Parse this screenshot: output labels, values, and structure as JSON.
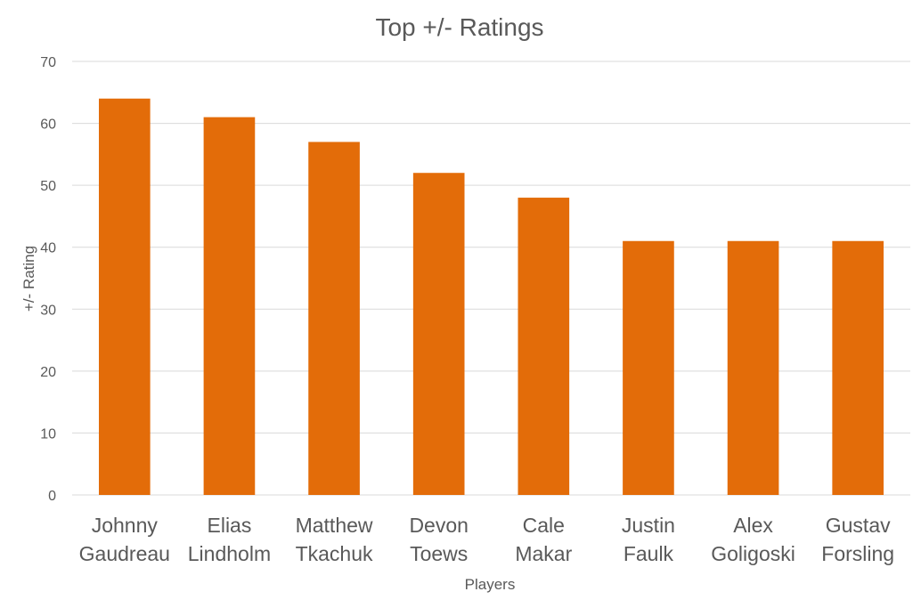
{
  "chart_data": {
    "type": "bar",
    "title": "Top +/- Ratings",
    "xlabel": "Players",
    "ylabel": "+/- Rating",
    "categories": [
      [
        "Johnny",
        "Gaudreau"
      ],
      [
        "Elias",
        "Lindholm"
      ],
      [
        "Matthew",
        "Tkachuk"
      ],
      [
        "Devon",
        "Toews"
      ],
      [
        "Cale",
        "Makar"
      ],
      [
        "Justin",
        "Faulk"
      ],
      [
        "Alex",
        "Goligoski"
      ],
      [
        "Gustav",
        "Forsling"
      ]
    ],
    "values": [
      64,
      61,
      57,
      52,
      48,
      41,
      41,
      41
    ],
    "ylim": [
      0,
      70
    ],
    "yticks": [
      0,
      10,
      20,
      30,
      40,
      50,
      60,
      70
    ],
    "grid": true,
    "legend": "none",
    "bar_color": "#e36c09"
  }
}
